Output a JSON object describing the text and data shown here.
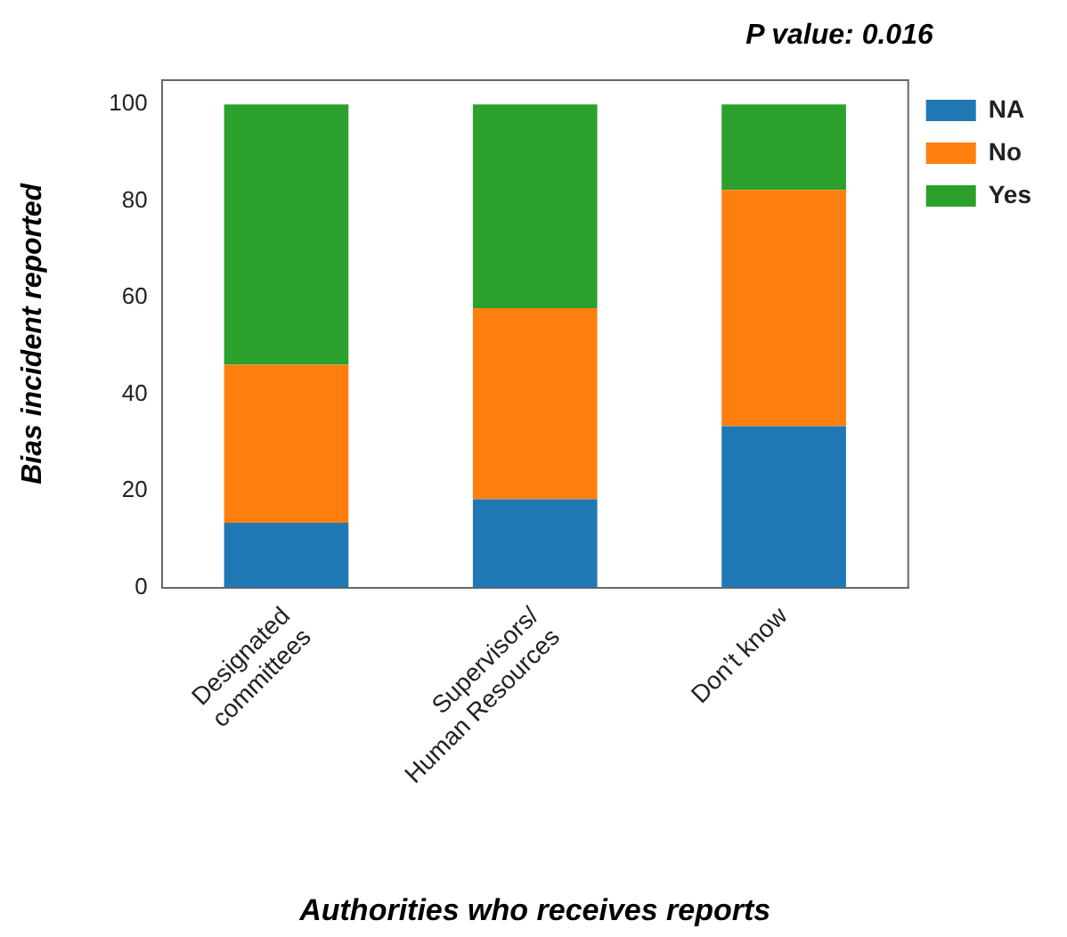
{
  "chart_data": {
    "type": "bar",
    "stacked": true,
    "xlabel": "Authorities who receives reports",
    "ylabel": "Bias incident reported",
    "annotations": [
      "P value: 0.016"
    ],
    "categories": [
      "Designated\ncommittees",
      "Supervisors/\nHuman Resources",
      "Don’t know"
    ],
    "series": [
      {
        "name": "NA",
        "color": "#1f77b4",
        "values": [
          13.4,
          18.3,
          33.4
        ]
      },
      {
        "name": "No",
        "color": "#ff7f0e",
        "values": [
          32.7,
          39.5,
          48.9
        ]
      },
      {
        "name": "Yes",
        "color": "#2ca02c",
        "values": [
          53.9,
          42.2,
          17.7
        ]
      }
    ],
    "ylim": [
      0,
      105
    ],
    "yticks": [
      0,
      20,
      40,
      60,
      80,
      100
    ],
    "grid": false,
    "legend": "top right"
  }
}
